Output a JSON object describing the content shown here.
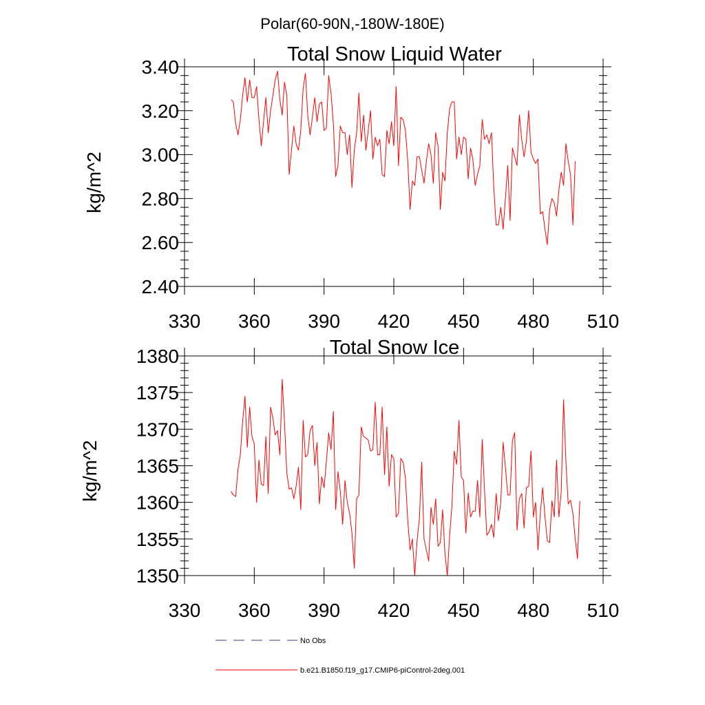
{
  "figure": {
    "suptitle": "Polar(60-90N,-180W-180E)",
    "colors": {
      "line": "#ff0000",
      "axes": "#000000",
      "no_obs": "#3a3a8c",
      "background": "#ffffff"
    }
  },
  "chart_data": [
    {
      "type": "line",
      "title": "Total Snow Liquid Water",
      "xlabel": "",
      "ylabel": "kg/m^2",
      "xlim": [
        330,
        510
      ],
      "ylim": [
        2.4,
        3.4
      ],
      "xticks": [
        330,
        360,
        390,
        420,
        450,
        480,
        510
      ],
      "xtick_labels": [
        "330",
        "360",
        "390",
        "420",
        "450",
        "480",
        "510"
      ],
      "yticks": [
        2.4,
        2.6,
        2.8,
        3.0,
        3.2,
        3.4
      ],
      "ytick_labels": [
        "2.40",
        "2.60",
        "2.80",
        "3.00",
        "3.20",
        "3.40"
      ],
      "series": [
        {
          "name": "b.e21.B1850.f19_g17.CMIP6-piControl-2deg.001",
          "color": "#ff0000",
          "x_start": 350,
          "x_step": 1,
          "values": [
            3.25,
            3.24,
            3.14,
            3.09,
            3.16,
            3.27,
            3.35,
            3.24,
            3.34,
            3.26,
            3.26,
            3.31,
            3.16,
            3.04,
            3.15,
            3.26,
            3.1,
            3.2,
            3.27,
            3.34,
            3.38,
            3.25,
            3.18,
            3.33,
            3.27,
            2.91,
            3.02,
            3.13,
            3.05,
            3.02,
            3.11,
            3.3,
            3.37,
            3.18,
            3.09,
            3.17,
            3.26,
            3.15,
            3.23,
            3.24,
            3.11,
            3.12,
            3.36,
            3.28,
            3.14,
            2.9,
            2.95,
            3.13,
            3.1,
            3.1,
            3.0,
            3.09,
            2.85,
            3.02,
            3.1,
            3.28,
            3.06,
            3.18,
            3.02,
            3.11,
            3.2,
            2.98,
            3.08,
            3.04,
            3.07,
            2.91,
            2.9,
            3.11,
            3.05,
            3.15,
            3.04,
            3.31,
            2.95,
            3.17,
            3.16,
            3.11,
            2.97,
            2.75,
            2.88,
            2.86,
            2.99,
            2.99,
            2.93,
            2.87,
            2.97,
            3.05,
            3.0,
            2.87,
            3.1,
            3.04,
            2.75,
            2.92,
            2.88,
            3.1,
            3.21,
            3.24,
            3.24,
            2.98,
            3.08,
            3.0,
            3.08,
            3.07,
            2.89,
            3.03,
            2.98,
            2.86,
            2.91,
            2.95,
            3.16,
            3.07,
            3.09,
            3.05,
            3.1,
            2.85,
            2.68,
            2.68,
            2.76,
            2.66,
            2.8,
            2.95,
            2.7,
            3.03,
            2.99,
            2.95,
            3.18,
            3.07,
            2.99,
            3.06,
            3.2,
            3.01,
            2.98,
            2.96,
            2.98,
            2.73,
            2.74,
            2.66,
            2.59,
            2.75,
            2.8,
            2.78,
            2.72,
            2.84,
            2.92,
            2.86,
            3.05,
            2.97,
            2.91,
            2.68,
            2.97
          ]
        }
      ]
    },
    {
      "type": "line",
      "title": "Total Snow Ice",
      "xlabel": "",
      "ylabel": "kg/m^2",
      "xlim": [
        330,
        510
      ],
      "ylim": [
        1350,
        1380
      ],
      "xticks": [
        330,
        360,
        390,
        420,
        450,
        480,
        510
      ],
      "xtick_labels": [
        "330",
        "360",
        "390",
        "420",
        "450",
        "480",
        "510"
      ],
      "yticks": [
        1350,
        1355,
        1360,
        1365,
        1370,
        1375,
        1380
      ],
      "ytick_labels": [
        "1350",
        "1355",
        "1360",
        "1365",
        "1370",
        "1375",
        "1380"
      ],
      "series": [
        {
          "name": "b.e21.B1850.f19_g17.CMIP6-piControl-2deg.001",
          "color": "#ff0000",
          "x_start": 350,
          "x_step": 1,
          "values": [
            1361.5,
            1361.0,
            1360.8,
            1364.5,
            1366.5,
            1371.0,
            1374.5,
            1367.5,
            1373.0,
            1369.0,
            1368.0,
            1360.0,
            1365.8,
            1362.5,
            1362.3,
            1369.0,
            1361.2,
            1373.0,
            1371.5,
            1369.2,
            1369.8,
            1366.5,
            1376.8,
            1371.0,
            1364.0,
            1361.8,
            1362.0,
            1360.5,
            1362.2,
            1364.8,
            1359.0,
            1371.2,
            1366.2,
            1366.5,
            1369.8,
            1370.5,
            1365.0,
            1368.2,
            1359.8,
            1363.5,
            1362.0,
            1365.5,
            1369.5,
            1367.2,
            1372.4,
            1359.0,
            1364.2,
            1361.5,
            1357.0,
            1363.0,
            1360.0,
            1358.5,
            1355.8,
            1351.0,
            1360.5,
            1361.0,
            1370.3,
            1369.0,
            1368.8,
            1368.5,
            1367.0,
            1367.2,
            1373.7,
            1366.5,
            1366.5,
            1373.0,
            1363.8,
            1370.3,
            1362.2,
            1366.5,
            1366.0,
            1358.0,
            1358.5,
            1366.0,
            1365.5,
            1363.3,
            1357.5,
            1353.5,
            1355.0,
            1350.0,
            1354.8,
            1357.8,
            1365.5,
            1355.0,
            1353.5,
            1352.0,
            1359.3,
            1357.0,
            1360.5,
            1354.0,
            1354.5,
            1359.0,
            1353.0,
            1350.0,
            1355.5,
            1359.5,
            1367.0,
            1365.2,
            1371.2,
            1363.5,
            1363.0,
            1355.8,
            1361.3,
            1358.0,
            1358.8,
            1358.8,
            1363.0,
            1358.0,
            1368.6,
            1361.8,
            1355.5,
            1356.0,
            1357.0,
            1355.2,
            1361.2,
            1357.5,
            1360.0,
            1368.2,
            1364.8,
            1361.0,
            1361.0,
            1368.5,
            1369.5,
            1356.2,
            1360.5,
            1361.2,
            1356.5,
            1362.0,
            1362.2,
            1367.0,
            1358.0,
            1360.0,
            1353.5,
            1358.5,
            1362.0,
            1358.0,
            1354.8,
            1354.5,
            1360.2,
            1358.0,
            1365.8,
            1358.0,
            1361.5,
            1374.0,
            1365.5,
            1359.8,
            1360.3,
            1358.5,
            1355.0,
            1352.3,
            1360.2
          ]
        }
      ]
    }
  ],
  "legend": {
    "items": [
      {
        "label": "No Obs",
        "style": "dashed",
        "color": "#3a3a8c"
      },
      {
        "label": "b.e21.B1850.f19_g17.CMIP6-piControl-2deg.001",
        "style": "solid",
        "color": "#ff0000"
      }
    ]
  }
}
